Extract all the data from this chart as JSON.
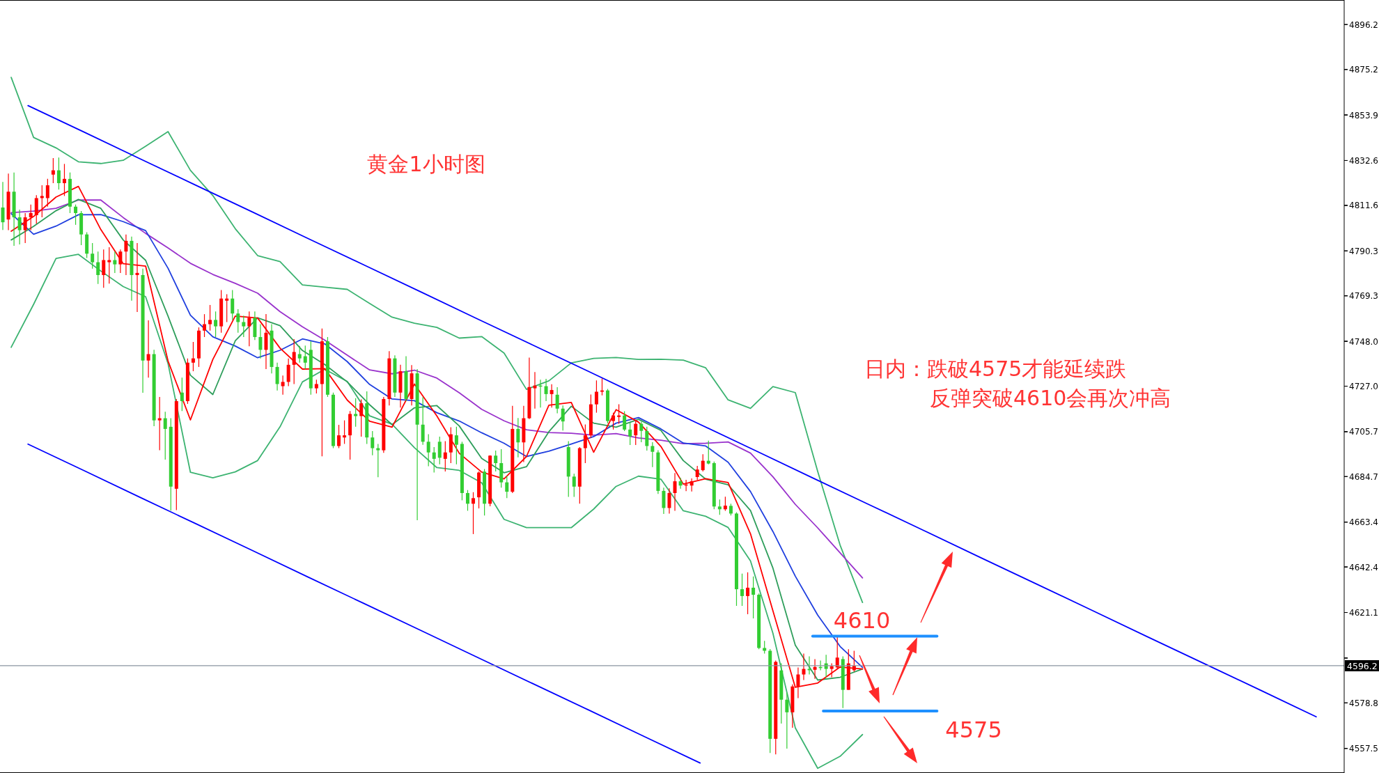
{
  "chart_data": [
    {
      "type": "candlestick",
      "title": "黄金1小时图",
      "annotations": [
        "日内：跌破4575才能延续跌",
        "反弹突破4610会再次冲高"
      ],
      "categories": [
        null,
        null,
        null,
        null,
        null,
        null,
        null,
        null,
        null,
        null,
        null,
        null,
        null,
        null,
        null,
        null,
        null,
        null,
        null,
        null,
        null,
        null,
        null,
        null,
        null,
        null,
        null,
        null,
        null,
        null,
        null,
        null,
        null,
        null,
        null,
        null,
        null,
        null,
        null,
        null,
        null,
        null,
        null,
        null,
        null,
        null,
        null,
        null,
        null,
        null,
        null,
        null,
        null,
        null,
        null,
        null,
        null,
        null,
        null,
        null,
        null,
        null,
        null,
        null,
        null,
        null,
        null,
        null,
        null,
        null,
        null,
        null,
        null,
        null,
        null,
        null,
        null,
        null,
        null,
        null,
        null,
        null,
        null,
        null,
        null,
        null,
        null,
        null,
        null,
        null,
        null,
        null,
        null,
        null,
        null,
        null,
        null,
        null,
        null,
        null,
        null,
        null,
        null,
        null,
        null,
        null,
        null,
        null,
        null,
        null,
        null,
        null,
        null,
        null,
        null,
        null,
        null,
        null,
        null,
        null,
        null,
        null,
        null,
        null,
        null,
        null,
        null,
        null,
        null,
        null,
        null,
        null,
        null,
        null,
        null,
        null,
        null,
        null,
        null,
        null,
        null,
        null,
        null,
        null,
        null,
        null,
        null,
        null,
        null,
        null,
        null,
        null,
        null,
        null,
        null,
        null,
        null,
        null,
        null,
        null,
        null,
        null,
        null,
        null,
        null,
        null,
        null,
        null,
        null,
        null,
        null,
        null,
        null,
        null,
        null,
        null,
        null,
        null,
        null,
        null,
        null,
        null,
        null,
        null,
        null,
        null,
        null,
        null,
        null,
        null,
        null,
        null,
        null,
        null,
        null,
        null,
        null,
        null,
        null,
        null,
        null,
        null,
        null,
        null,
        null,
        null,
        null,
        null,
        null,
        null,
        null,
        null,
        null,
        null,
        null,
        null,
        null,
        null,
        null,
        null,
        null,
        null,
        null,
        null,
        null,
        null,
        null,
        null,
        null,
        null,
        null,
        null,
        null,
        null,
        null,
        null,
        null,
        null,
        null,
        null
      ],
      "ohlc": [
        [
          4810.6,
          4822.6,
          4800.1,
          4803.7
        ],
        [
          4805,
          4826.5,
          4800,
          4818
        ],
        [
          4818,
          4827,
          4792.7,
          4806
        ],
        [
          4806,
          4809.6,
          4793.3,
          4800
        ],
        [
          4800,
          4808,
          4794,
          4806
        ],
        [
          4806,
          4812,
          4800,
          4808
        ],
        [
          4807,
          4816.4,
          4803,
          4815
        ],
        [
          4815,
          4821,
          4806,
          4816
        ],
        [
          4815,
          4824,
          4811,
          4821
        ],
        [
          4826,
          4833.7,
          4822,
          4828
        ],
        [
          4828,
          4834,
          4819,
          4822
        ],
        [
          4822,
          4831,
          4816,
          4824
        ],
        [
          4824,
          4827,
          4808,
          4811
        ],
        [
          4811,
          4812,
          4802.5,
          4808
        ],
        [
          4808,
          4809,
          4793,
          4798
        ],
        [
          4798,
          4799,
          4787,
          4789
        ],
        [
          4789,
          4794,
          4782,
          4785
        ],
        [
          4785,
          4790,
          4774.8,
          4779
        ],
        [
          4779,
          4791,
          4773,
          4786
        ],
        [
          4785,
          4792,
          4775,
          4786
        ],
        [
          4786,
          4790,
          4780,
          4784
        ],
        [
          4784,
          4791,
          4780,
          4790
        ],
        [
          4790,
          4798,
          4779,
          4795
        ],
        [
          4795,
          4797,
          4767,
          4779
        ],
        [
          4779,
          4794,
          4761.7,
          4780
        ],
        [
          4779,
          4782,
          4723.9,
          4739
        ],
        [
          4739,
          4757.8,
          4731,
          4742
        ],
        [
          4742,
          4744,
          4708.3,
          4711
        ],
        [
          4711,
          4722,
          4697,
          4712
        ],
        [
          4712,
          4715,
          4692.6,
          4707
        ],
        [
          4708,
          4712,
          4668.8,
          4680
        ],
        [
          4679,
          4721,
          4669,
          4720
        ],
        [
          4724,
          4731,
          4715.4,
          4720
        ],
        [
          4720,
          4740,
          4718.7,
          4738
        ],
        [
          4738,
          4747.7,
          4734,
          4740
        ],
        [
          4740,
          4754.5,
          4736,
          4753
        ],
        [
          4753,
          4760.7,
          4750,
          4756
        ],
        [
          4756,
          4765,
          4753,
          4758
        ],
        [
          4758,
          4762,
          4750,
          4755
        ],
        [
          4755,
          4772,
          4752,
          4768
        ],
        [
          4767,
          4770,
          4757,
          4768
        ],
        [
          4768,
          4772,
          4758,
          4761
        ],
        [
          4761,
          4763,
          4752,
          4757
        ],
        [
          4757,
          4760,
          4750,
          4755
        ],
        [
          4755,
          4762,
          4745.7,
          4759
        ],
        [
          4759,
          4762,
          4748.6,
          4750
        ],
        [
          4750,
          4756,
          4740,
          4744
        ],
        [
          4744,
          4760.7,
          4735,
          4752
        ],
        [
          4753,
          4756,
          4733,
          4736
        ],
        [
          4736,
          4738,
          4725,
          4728
        ],
        [
          4727,
          4732,
          4723,
          4729
        ],
        [
          4729,
          4740,
          4727,
          4737
        ],
        [
          4737,
          4749,
          4728,
          4743
        ],
        [
          4742,
          4745.8,
          4738,
          4740
        ],
        [
          4741,
          4746,
          4735,
          4738
        ],
        [
          4744,
          4748,
          4723,
          4726
        ],
        [
          4726,
          4730,
          4723.6,
          4728
        ],
        [
          4728,
          4754,
          4694.2,
          4748
        ],
        [
          4748,
          4750,
          4722,
          4723
        ],
        [
          4723,
          4724,
          4698,
          4699
        ],
        [
          4699,
          4708.9,
          4698,
          4704
        ],
        [
          4703,
          4711,
          4700,
          4704
        ],
        [
          4704,
          4715.4,
          4692.6,
          4714
        ],
        [
          4714,
          4721.4,
          4708,
          4713
        ],
        [
          4713,
          4720.8,
          4703.4,
          4719
        ],
        [
          4719,
          4724.6,
          4700,
          4703
        ],
        [
          4703,
          4706,
          4694.7,
          4698
        ],
        [
          4698,
          4700,
          4684.4,
          4697
        ],
        [
          4697,
          4722,
          4695.8,
          4721
        ],
        [
          4721,
          4743.4,
          4718,
          4740
        ],
        [
          4740,
          4741.4,
          4722,
          4724
        ],
        [
          4724,
          4737,
          4717,
          4734
        ],
        [
          4734,
          4741,
          4720,
          4721
        ],
        [
          4721,
          4736.9,
          4718,
          4733
        ],
        [
          4733,
          4735,
          4664.3,
          4709
        ],
        [
          4709,
          4721.9,
          4699.6,
          4701
        ],
        [
          4701,
          4704.5,
          4689.5,
          4696
        ],
        [
          4696,
          4698.5,
          4686.6,
          4693
        ],
        [
          4701,
          4703.4,
          4690.4,
          4693.5
        ],
        [
          4693,
          4701.3,
          4687.1,
          4696
        ],
        [
          4696,
          4707.8,
          4691,
          4704.5
        ],
        [
          4704,
          4708,
          4690.4,
          4699.6
        ],
        [
          4700,
          4701,
          4673.6,
          4677
        ],
        [
          4677,
          4678.4,
          4668.7,
          4672
        ],
        [
          4672,
          4677.4,
          4657.8,
          4674.6
        ],
        [
          4675,
          4687.1,
          4669.8,
          4686.6
        ],
        [
          4687,
          4688.2,
          4666.5,
          4672
        ],
        [
          4672,
          4694.7,
          4670.8,
          4694.5
        ],
        [
          4694.5,
          4696.9,
          4687.1,
          4691
        ],
        [
          4691,
          4697.5,
          4679.5,
          4682
        ],
        [
          4682,
          4685,
          4674.6,
          4677.6
        ],
        [
          4677.6,
          4717.8,
          4677,
          4707
        ],
        [
          4707,
          4712.1,
          4693.7,
          4700.7
        ],
        [
          4700.7,
          4717.8,
          4691.5,
          4712
        ],
        [
          4712,
          4740.4,
          4711.6,
          4726.6
        ],
        [
          4726,
          4733.6,
          4716.5,
          4727.3
        ],
        [
          4727.3,
          4730,
          4717,
          4726.8
        ],
        [
          4727,
          4730.4,
          4720,
          4723.3
        ],
        [
          4723.3,
          4727.9,
          4717,
          4725.2
        ],
        [
          4723,
          4726.5,
          4714.3,
          4716.5
        ],
        [
          4716.5,
          4718,
          4706.2,
          4710.5
        ],
        [
          4698.5,
          4701.3,
          4675.2,
          4684.7
        ],
        [
          4684.7,
          4686,
          4675.2,
          4680
        ],
        [
          4680,
          4698.5,
          4672,
          4698
        ],
        [
          4698,
          4709.1,
          4691,
          4704
        ],
        [
          4704,
          4723.1,
          4702.8,
          4718.5
        ],
        [
          4718.5,
          4729.7,
          4714.6,
          4724.4
        ],
        [
          4724.4,
          4730.6,
          4722.7,
          4725
        ],
        [
          4725,
          4725.7,
          4709.6,
          4710.7
        ],
        [
          4710.7,
          4714.6,
          4706.7,
          4713.3
        ],
        [
          4712.6,
          4718.5,
          4709.4,
          4713.3
        ],
        [
          4713.3,
          4715.3,
          4706,
          4706.7
        ],
        [
          4706.7,
          4710,
          4699.5,
          4703.5
        ],
        [
          4704,
          4710.7,
          4699.5,
          4709.4
        ],
        [
          4709.4,
          4710.4,
          4700.8,
          4706.1
        ],
        [
          4706,
          4708,
          4696.9,
          4699
        ],
        [
          4699,
          4700.8,
          4689.1,
          4696.3
        ],
        [
          4696,
          4697,
          4676.6,
          4678
        ],
        [
          4678,
          4679.5,
          4667.2,
          4670
        ],
        [
          4670,
          4679.2,
          4667.4,
          4677
        ],
        [
          4677,
          4686.4,
          4668.7,
          4682.5
        ],
        [
          4682.5,
          4684.2,
          4679,
          4680.5
        ],
        [
          4680.6,
          4683.2,
          4677.9,
          4681
        ],
        [
          4680.5,
          4683.8,
          4677.7,
          4682.5
        ],
        [
          4684.5,
          4689.7,
          4683.2,
          4688
        ],
        [
          4687.7,
          4695.2,
          4687.1,
          4692.1
        ],
        [
          4692.1,
          4701.5,
          4690.4,
          4690.8
        ],
        [
          4691,
          4691.7,
          4669.4,
          4670.7
        ],
        [
          4670.7,
          4674,
          4666.8,
          4669.4
        ],
        [
          4669.4,
          4675.3,
          4668.7,
          4671.1
        ],
        [
          4671,
          4672,
          4666.5,
          4667.4
        ],
        [
          4667.4,
          4668,
          4624.2,
          4632
        ],
        [
          4632,
          4639.3,
          4624.2,
          4628.8
        ],
        [
          4628.8,
          4639.9,
          4620.3,
          4632.7
        ],
        [
          4632.7,
          4638,
          4618.3,
          4629.4
        ],
        [
          4629.4,
          4630,
          4603.9,
          4604.5
        ],
        [
          4604.5,
          4607.8,
          4601.9,
          4603.2
        ],
        [
          4603.2,
          4604,
          4555.4,
          4562
        ],
        [
          4562,
          4598.6,
          4554.7,
          4598
        ],
        [
          4594,
          4597.3,
          4569.1,
          4580.3
        ],
        [
          4580.3,
          4583.6,
          4557.4,
          4574.4
        ],
        [
          4574.4,
          4587.5,
          4567.2,
          4586.5
        ],
        [
          4586.5,
          4595.4,
          4581,
          4592.1
        ],
        [
          4592.1,
          4601.9,
          4589.5,
          4594.7
        ],
        [
          4594.7,
          4600.6,
          4592.1,
          4594.1
        ],
        [
          4594.3,
          4599.3,
          4590.1,
          4595.6
        ],
        [
          4595.6,
          4598.6,
          4594.1,
          4595.3
        ],
        [
          4597.3,
          4601.3,
          4590.8,
          4594.7
        ],
        [
          4594.7,
          4597.3,
          4590.8,
          4596
        ],
        [
          4595.4,
          4609.8,
          4594.7,
          4600
        ],
        [
          4599.3,
          4600.6,
          4576.4,
          4584.9
        ],
        [
          4584.9,
          4603.9,
          4584.9,
          4597.3
        ],
        [
          4594.1,
          4603.2,
          4593.4,
          4596.2
        ],
        null,
        null,
        null,
        null,
        null,
        null,
        null,
        null,
        null,
        null,
        null,
        null,
        null,
        null,
        null,
        null,
        null,
        null,
        null,
        null,
        null,
        null,
        null,
        null,
        null,
        null,
        null,
        null,
        null,
        null,
        null,
        null,
        null,
        null,
        null,
        null,
        null,
        null,
        null,
        null,
        null,
        null,
        null,
        null,
        null,
        null,
        null,
        null,
        null,
        null,
        null,
        null,
        null,
        null,
        null,
        null,
        null,
        null,
        null,
        null,
        null,
        null,
        null,
        null,
        null,
        null,
        null,
        null,
        null,
        null,
        null,
        null,
        null,
        null,
        null,
        null,
        null,
        null,
        null,
        null,
        null,
        null,
        null,
        null,
        null,
        null,
        null
      ],
      "colors": [
        "#32cd32",
        "#ff0000",
        "#32cd32",
        "#32cd32",
        "#ff0000",
        "#ff0000",
        "#ff0000",
        "#ff0000",
        "#ff0000",
        "#ff0000",
        "#32cd32",
        "#ff0000",
        "#32cd32",
        "#32cd32",
        "#32cd32",
        "#32cd32",
        "#32cd32",
        "#32cd32",
        "#ff0000",
        "#ff0000",
        "#32cd32",
        "#ff0000",
        "#ff0000",
        "#32cd32",
        "#ff0000",
        "#32cd32",
        "#ff0000",
        "#32cd32",
        "#ff0000",
        "#32cd32",
        "#32cd32",
        "#ff0000",
        "#32cd32",
        "#ff0000",
        "#ff0000",
        "#ff0000",
        "#ff0000",
        "#ff0000",
        "#32cd32",
        "#ff0000",
        "#ff0000",
        "#32cd32",
        "#32cd32",
        "#32cd32",
        "#ff0000",
        "#32cd32",
        "#32cd32",
        "#ff0000",
        "#32cd32",
        "#32cd32",
        "#ff0000",
        "#ff0000",
        "#ff0000",
        "#32cd32",
        "#32cd32",
        "#32cd32",
        "#ff0000",
        "#ff0000",
        "#32cd32",
        "#32cd32",
        "#ff0000",
        "#ff0000",
        "#ff0000",
        "#32cd32",
        "#ff0000",
        "#32cd32",
        "#32cd32",
        "#32cd32",
        "#ff0000",
        "#ff0000",
        "#32cd32",
        "#ff0000",
        "#32cd32",
        "#ff0000",
        "#32cd32",
        "#32cd32",
        "#32cd32",
        "#32cd32",
        "#32cd32",
        "#ff0000",
        "#ff0000",
        "#32cd32",
        "#32cd32",
        "#32cd32",
        "#ff0000",
        "#ff0000",
        "#32cd32",
        "#ff0000",
        "#32cd32",
        "#32cd32",
        "#32cd32",
        "#ff0000",
        "#32cd32",
        "#ff0000",
        "#ff0000",
        "#ff0000",
        "#32cd32",
        "#32cd32",
        "#ff0000",
        "#32cd32",
        "#32cd32",
        "#32cd32",
        "#32cd32",
        "#ff0000",
        "#ff0000",
        "#ff0000",
        "#ff0000",
        "#ff0000",
        "#32cd32",
        "#ff0000",
        "#ff0000",
        "#32cd32",
        "#32cd32",
        "#ff0000",
        "#32cd32",
        "#32cd32",
        "#32cd32",
        "#32cd32",
        "#32cd32",
        "#ff0000",
        "#ff0000",
        "#32cd32",
        "#ff0000",
        "#ff0000",
        "#ff0000",
        "#ff0000",
        "#32cd32",
        "#32cd32",
        "#32cd32",
        "#ff0000",
        "#32cd32",
        "#32cd32",
        "#32cd32",
        "#ff0000",
        "#32cd32",
        "#32cd32",
        "#32cd32",
        "#32cd32",
        "#ff0000",
        "#32cd32",
        "#32cd32",
        "#ff0000",
        "#ff0000",
        "#ff0000",
        "#32cd32",
        "#ff0000",
        "#32cd32",
        "#32cd32",
        "#ff0000",
        "#ff0000",
        "#32cd32",
        "#ff0000",
        "#ff0000",
        null,
        null,
        null,
        null,
        null,
        null,
        null,
        null,
        null,
        null,
        null,
        null,
        null,
        null,
        null,
        null,
        null,
        null,
        null,
        null,
        null,
        null,
        null,
        null,
        null,
        null,
        null,
        null,
        null,
        null,
        null,
        null,
        null,
        null,
        null,
        null,
        null,
        null,
        null,
        null,
        null,
        null,
        null,
        null,
        null,
        null,
        null,
        null,
        null,
        null,
        null,
        null,
        null,
        null,
        null,
        null,
        null,
        null,
        null,
        null,
        null,
        null,
        null,
        null,
        null,
        null,
        null,
        null,
        null,
        null,
        null,
        null,
        null,
        null,
        null,
        null,
        null,
        null,
        null,
        null,
        null,
        null,
        null,
        null,
        null,
        null,
        null
      ],
      "ylim": [
        4546.0,
        4907.7
      ],
      "yticks": [
        4896.2,
        4875.2,
        4853.9,
        4832.6,
        4811.6,
        4790.3,
        4769.3,
        {
          "value": 4748,
          "label": "4748.0"
        },
        {
          "value": 4727,
          "label": "4727.0"
        },
        4705.7,
        4684.7,
        4663.4,
        4642.4,
        4621.1,
        {
          "value": 4599.8,
          "label": null
        },
        4578.8,
        4557.5
      ],
      "ref_lines": [
        {
          "axis": "y",
          "value": 4596.2,
          "label": "4596.2",
          "color": "#8a94a0"
        },
        {
          "axis": "y",
          "value": 4610,
          "label": "4610",
          "color": "#1e90ff"
        },
        {
          "axis": "y",
          "value": 4575,
          "label": "4575",
          "color": "#1e90ff"
        }
      ],
      "tick_labels": "y"
    },
    {
      "type": "line",
      "categories": [
        null,
        null,
        null,
        null,
        null,
        null,
        null,
        null,
        null,
        null,
        null,
        null,
        null,
        null,
        null,
        null,
        null,
        null,
        null,
        null,
        null,
        null,
        null,
        null,
        null,
        null,
        null,
        null,
        null,
        null,
        null,
        null,
        null,
        null,
        null,
        null,
        null,
        null,
        null,
        null,
        null,
        null,
        null,
        null,
        null,
        null,
        null,
        null,
        null,
        null,
        null,
        null,
        null,
        null,
        null,
        null,
        null,
        null,
        null,
        null
      ],
      "series": [
        {
          "color": "#3cb371",
          "values": [
            4871.5,
            4843.4,
            4838.5,
            4832.0,
            4831.2,
            4832.7,
            4839.3,
            4846.1,
            4828.0,
            4816.2,
            4800.7,
            4788.1,
            4785.3,
            4774.4,
            4773.3,
            4772.3,
            4765.7,
            4759.3,
            4756.5,
            4754.5,
            4749.5,
            4750.2,
            4742.5,
            4725.5,
            4729.5,
            4737.9,
            4740.0,
            4740.4,
            4739.5,
            4739.6,
            4739.2,
            4735.6,
            4720.6,
            4716.6,
            4726.8,
            4724.0,
            4687.1,
            4652.6,
            4625.8,
            null,
            null,
            null,
            null,
            null,
            null,
            null,
            null,
            null,
            null,
            null,
            null,
            null,
            null,
            null,
            null,
            null,
            null,
            null,
            null,
            null
          ]
        },
        {
          "color": "#3cb371",
          "values": [
            4745.2,
            4765.3,
            4786.8,
            4788.7,
            4780.9,
            4773.6,
            4768.9,
            4737.6,
            4686.7,
            4684.1,
            4686.9,
            4692.2,
            4708.0,
            4729.0,
            4734.9,
            4729.2,
            4713.1,
            4709.2,
            4698.2,
            4688.9,
            4687.6,
            4681.8,
            4664.7,
            4660.8,
            4660.8,
            4660.8,
            4669.5,
            4680.1,
            4684.9,
            4683.5,
            4668.7,
            4666.1,
            4660.9,
            4645.2,
            4611.4,
            4567.1,
            4548.2,
            4553.8,
            4564.0,
            null,
            null,
            null,
            null,
            null,
            null,
            null,
            null,
            null,
            null,
            null,
            null,
            null,
            null,
            null,
            null,
            null,
            null,
            null,
            null,
            null
          ]
        },
        {
          "color": "#9932cc",
          "values": [
            4808.2,
            4808.9,
            4810.2,
            4814.1,
            4814.1,
            4805.9,
            4798.5,
            4791.7,
            4784.5,
            4779.3,
            4775.1,
            4770.5,
            4761.9,
            4754.8,
            4748.5,
            4741.5,
            4734.6,
            4732.8,
            4734.5,
            4730.8,
            4723.9,
            4716.2,
            4710.8,
            4706.6,
            4705.3,
            4705.0,
            4704.1,
            4704.8,
            4702.8,
            4701.7,
            4700.1,
            4700.3,
            4700.9,
            4695.7,
            4684.6,
            4671.7,
            4660.7,
            4649.0,
            4637.3,
            null,
            null,
            null,
            null,
            null,
            null,
            null,
            null,
            null,
            null,
            null,
            null,
            null,
            null,
            null,
            null,
            null,
            null,
            null,
            null,
            null
          ]
        },
        {
          "color": "#1f3fdf",
          "values": [
            4807.7,
            4798.1,
            4801.9,
            4807.2,
            4807.3,
            4804.0,
            4799.8,
            4782.2,
            4760.2,
            4750.1,
            4745.8,
            4740.3,
            4743.8,
            4749.1,
            4746.8,
            4738.5,
            4727.8,
            4721.0,
            4720.2,
            4714.6,
            4710.7,
            4705.2,
            4700.3,
            4694.1,
            4696.6,
            4699.9,
            4703.4,
            4709.7,
            4712.3,
            4707.0,
            4700.4,
            4699.0,
            4691.4,
            4677.7,
            4659.0,
            4638.1,
            4619.9,
            4605.2,
            4595.4,
            null,
            null,
            null,
            null,
            null,
            null,
            null,
            null,
            null,
            null,
            null,
            null,
            null,
            null,
            null,
            null,
            null,
            null,
            null,
            null,
            null
          ]
        },
        {
          "color": "#2e9e5b",
          "values": [
            4795.4,
            4801.8,
            4809.1,
            4814.4,
            4810.2,
            4795.4,
            4785.9,
            4759.8,
            4732.1,
            4723.1,
            4748.2,
            4759.0,
            4755.3,
            4743.7,
            4737.1,
            4729.0,
            4718.3,
            4709.0,
            4716.9,
            4717.9,
            4708.4,
            4693.2,
            4686.5,
            4689.3,
            4705.7,
            4717.6,
            4709.7,
            4707.8,
            4711.5,
            4706.3,
            4692.2,
            4683.5,
            4680.9,
            4668.8,
            4641.9,
            4605.8,
            4589.5,
            4590.8,
            4594.7,
            null,
            null,
            null,
            null,
            null,
            null,
            null,
            null,
            null,
            null,
            null,
            null,
            null,
            null,
            null,
            null,
            null,
            null,
            null,
            null,
            null
          ]
        },
        {
          "color": "#ff0000",
          "values": [
            4799.5,
            4806.4,
            4815.5,
            4820.5,
            4800.3,
            4784.3,
            4783.2,
            4738.8,
            4711.2,
            4739.5,
            4759.8,
            4758.9,
            4744.8,
            4735,
            4735.2,
            4720.5,
            4710.6,
            4707.8,
            4728.0,
            4713.1,
            4695.6,
            4686.8,
            4683.6,
            4694.1,
            4718.1,
            4719.4,
            4696.1,
            4716.0,
            4710.2,
            4698.8,
            4681.2,
            4683.7,
            4681.9,
            4657.9,
            4621.9,
            4586.1,
            4588.1,
            4595.6,
            4594.7,
            null,
            null,
            null,
            null,
            null,
            null,
            null,
            null,
            null,
            null,
            null,
            null,
            null,
            null,
            null,
            null,
            null,
            null,
            null,
            null,
            null
          ]
        }
      ],
      "ylim": [
        4546.0,
        4907.7
      ],
      "yticks": [
        4896.2,
        4875.2,
        4853.9,
        4832.6,
        4811.6,
        4790.3,
        4769.3,
        4748,
        4727,
        4705.7,
        4684.7,
        4663.4,
        4642.4,
        4621.1,
        4599.8,
        4578.8,
        4557.5
      ],
      "tick_labels": false
    },
    {
      "type": "line",
      "categories": [
        null,
        null,
        null,
        null,
        null,
        null,
        null,
        null,
        null,
        null,
        null,
        null,
        null,
        null,
        null,
        null,
        null,
        null,
        null,
        null,
        null,
        null,
        null,
        null
      ],
      "series": [
        {
          "color": "#0000ff",
          "values": [
            4858.3,
            4845.9,
            4833.4,
            4821.0,
            4808.6,
            4796.1,
            4783.7,
            4771.3,
            4758.8,
            4746.4,
            4734.0,
            4721.5,
            4709.1,
            4696.7,
            4684.2,
            4671.8,
            4659.4,
            4646.9,
            4634.5,
            4622.1,
            4609.6,
            4597.2,
            4584.8,
            4572.3
          ]
        },
        {
          "color": "#0000ff",
          "values": [
            4699.9,
            4687.5,
            4675.0,
            4662.6,
            4650.2,
            4637.7,
            4625.3,
            4612.9,
            4600.4,
            4588.0,
            4575.6,
            4563.1,
            4550.7,
            null,
            null,
            null,
            null,
            null,
            null,
            null,
            null,
            null,
            null,
            null
          ]
        }
      ],
      "ylim": [
        4546.0,
        4907.7
      ],
      "yticks": [
        4896.2,
        4875.2,
        4853.9,
        4832.6,
        4811.6,
        4790.3,
        4769.3,
        4748,
        4727,
        4705.7,
        4684.7,
        4663.4,
        4642.4,
        4621.1,
        4599.8,
        4578.8,
        4557.5
      ],
      "tick_labels": false
    }
  ]
}
